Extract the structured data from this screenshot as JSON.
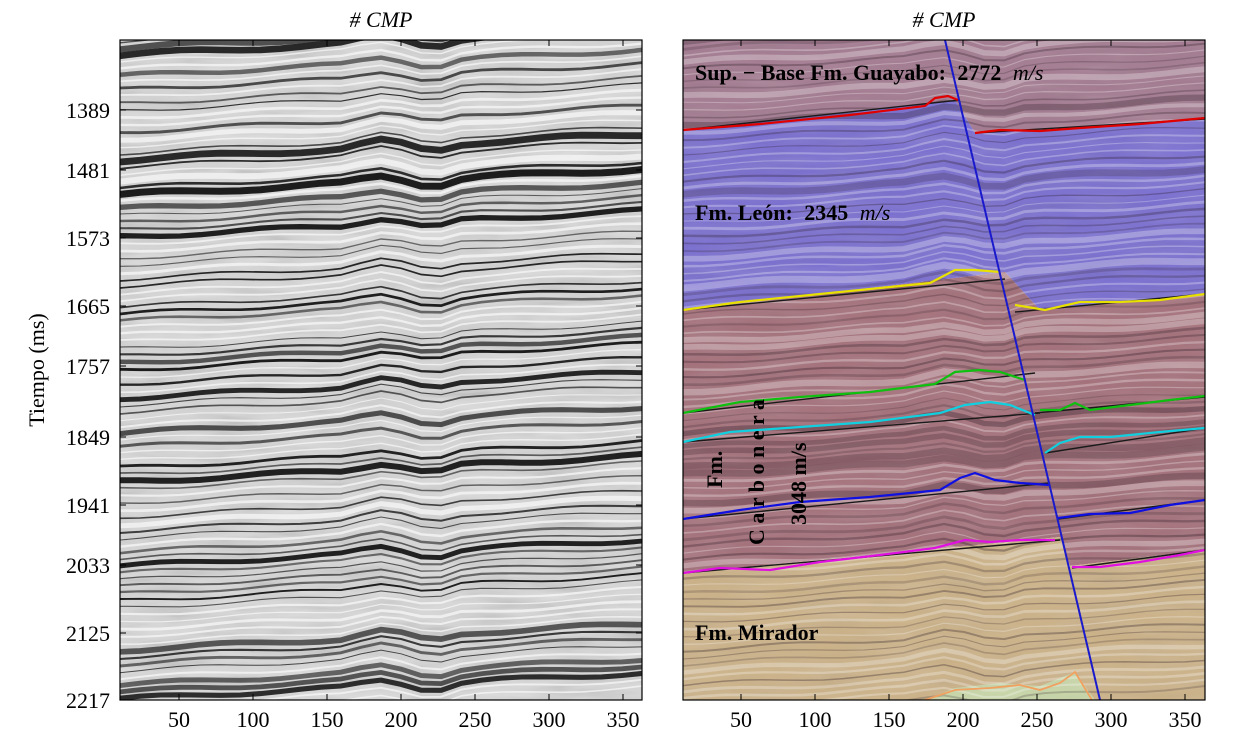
{
  "panels": [
    {
      "title": "# CMP",
      "x_ticks": [
        "50",
        "100",
        "150",
        "200",
        "250",
        "300",
        "350"
      ],
      "y_ticks": [
        "1389",
        "1481",
        "1573",
        "1665",
        "1757",
        "1849",
        "1941",
        "2033",
        "2125",
        "2217"
      ],
      "y_label": "Tiempo (ms)"
    },
    {
      "title": "# CMP",
      "x_ticks": [
        "50",
        "100",
        "150",
        "200",
        "250",
        "300",
        "350"
      ],
      "layers": [
        {
          "label": "Sup. − Base Fm. Guayabo:",
          "value": "2772",
          "unit": "m/s",
          "color": "#a37a90"
        },
        {
          "label": "Fm. León:",
          "value": "2345",
          "unit": "m/s",
          "color": "#7a6fd0"
        },
        {
          "label_line1": "Fm.",
          "label_line2": "C a r b o n e r a",
          "value_line": "3048 m/s",
          "color": "#a4707a"
        },
        {
          "label": "Fm. Mirador",
          "color": "#ccb288"
        }
      ],
      "horizon_colors": [
        "#e00000",
        "#e8e000",
        "#10c010",
        "#10d0e0",
        "#1010e0",
        "#e010e0",
        "#f0a060"
      ],
      "fault_color": "#1a1acc"
    }
  ]
}
